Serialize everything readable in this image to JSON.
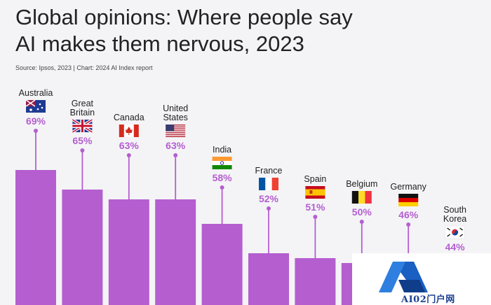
{
  "header": {
    "title_line1": "Global opinions: Where people say",
    "title_line2": "AI makes them nervous, 2023",
    "source": "Source: Ipsos, 2023 | Chart: 2024 AI Index report"
  },
  "colors": {
    "bar": "#b55ed0",
    "value_label": "#b55ed0",
    "stem": "#b55ed0",
    "text": "#222222"
  },
  "chart_data": {
    "type": "bar",
    "title": "Global opinions: Where people say AI makes them nervous, 2023",
    "categories": [
      "Australia",
      "Great Britain",
      "Canada",
      "United States",
      "India",
      "France",
      "Spain",
      "Belgium",
      "Germany",
      "South Korea"
    ],
    "values": [
      69,
      65,
      63,
      63,
      58,
      52,
      51,
      50,
      46,
      44
    ],
    "value_labels": [
      "69%",
      "65%",
      "63%",
      "63%",
      "58%",
      "52%",
      "51%",
      "50%",
      "46%",
      "44%"
    ],
    "flags": [
      "flag-australia-icon",
      "flag-uk-icon",
      "flag-canada-icon",
      "flag-usa-icon",
      "flag-india-icon",
      "flag-france-icon",
      "flag-spain-icon",
      "flag-belgium-icon",
      "flag-germany-icon",
      "flag-south-korea-icon"
    ],
    "unit": "%",
    "legend": "none",
    "grid": false
  },
  "watermark": {
    "text": "AI02门户网"
  }
}
